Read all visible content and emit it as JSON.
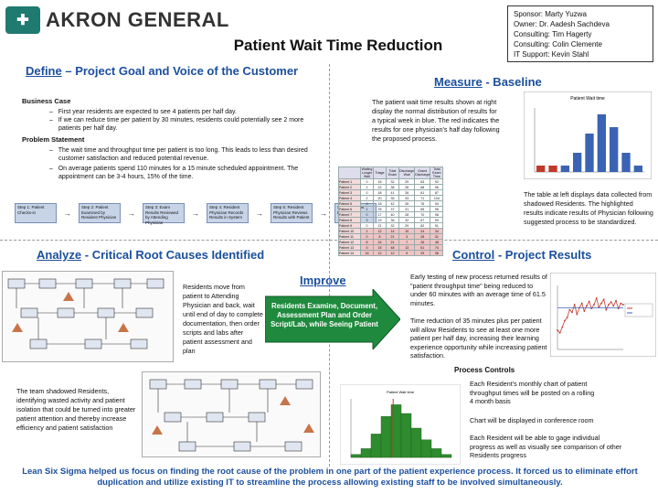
{
  "header": {
    "logo_text": "AKRON GENERAL",
    "title": "Patient Wait Time Reduction"
  },
  "team": [
    "Sponsor:  Marty Yuzwa",
    "Owner:  Dr. Aadesh Sachdeva",
    "Consulting:  Tim Hagerty",
    "Consulting:  Colin Clemente",
    "IT Support:  Kevin Stahl"
  ],
  "define": {
    "title_u": "Define",
    "title_rest": " – Project Goal and Voice of the Customer",
    "business_case_label": "Business Case",
    "business_case": [
      "First year residents are expected to see 4 patients per half day.",
      "If we can reduce time per patient by 30 minutes, residents could potentially see 2 more patients per half day."
    ],
    "problem_label": "Problem Statement",
    "problem": [
      "The wait time and throughput time per patient is too long. This leads to less than desired customer satisfaction and reduced potential revenue.",
      "On average patients spend 110 minutes for a 15 minute scheduled appointment. The appointment can be 3-4 hours, 15% of the time."
    ],
    "flow_steps": [
      "Step 1: Patient Checks-in",
      "Step 2: Patient Examined by Resident Physician",
      "Step 3: Exam Results Reviewed by Attending Physician",
      "Step 4: Resident Physician Records Results in System",
      "Step 5: Resident Physician Reviews Results with Patient",
      "Step 6: Patient Discharged"
    ]
  },
  "measure": {
    "title_u": "Measure",
    "title_rest": " - Baseline",
    "text": "The patient wait time results shown at right display the normal distribution of results for a typical week in blue. The red indicates the results for one physician's half day following the proposed process.",
    "table_note": "The table at left displays data collected from shadowed Residents. The highlighted results indicate results of Physician following suggested process to be standardized.",
    "table_headers": [
      "",
      "Waiting Longer Wait",
      "Triage",
      "Total Exam",
      "Discharge Wait",
      "Grand Discharge",
      "Total Exam Time"
    ],
    "table_rows": [
      [
        "Patient 1",
        "0",
        "16",
        "32",
        "29",
        "63",
        "92"
      ],
      [
        "Patient 2",
        "1",
        "22",
        "38",
        "28",
        "68",
        "96"
      ],
      [
        "Patient 3",
        "0",
        "18",
        "41",
        "26",
        "61",
        "87"
      ],
      [
        "Patient 4",
        "2",
        "20",
        "35",
        "33",
        "71",
        "104"
      ],
      [
        "Patient 5",
        "0",
        "18",
        "42",
        "26",
        "76",
        "94"
      ],
      [
        "Patient 6",
        "1",
        "25",
        "37",
        "31",
        "65",
        "96"
      ],
      [
        "Patient 7",
        "0",
        "17",
        "40",
        "28",
        "70",
        "98"
      ],
      [
        "Patient 8",
        "3",
        "19",
        "36",
        "32",
        "67",
        "99"
      ],
      [
        "Patient 9",
        "0",
        "21",
        "32",
        "29",
        "62",
        "91"
      ],
      [
        "Patient 10",
        "1",
        "12",
        "14",
        "10",
        "24",
        "34"
      ],
      [
        "Patient 11",
        "0",
        "8",
        "21",
        "3",
        "28",
        "31"
      ],
      [
        "Patient 12",
        "8",
        "24",
        "21",
        "7",
        "26",
        "48"
      ],
      [
        "Patient 13",
        "0",
        "15",
        "48",
        "13",
        "61",
        "74"
      ],
      [
        "Patient 14",
        "16",
        "12",
        "12",
        "9",
        "29",
        "38"
      ]
    ]
  },
  "analyze": {
    "title_u": "Analyze",
    "title_rest": " - Critical Root Causes Identified",
    "text1": "Residents move from patient to Attending Physician and back, wait until end of day to complete documentation, then order scripts and labs after patient assessment and plan",
    "text2": "The team shadowed Residents, identifying wasted activity and patient isolation that could be turned into greater patient attention and thereby increase efficiency and patient satisfaction"
  },
  "improve": {
    "label": "Improve",
    "arrow_text": "Residents Examine, Document, Assessment Plan and Order Script/Lab, while Seeing Patient"
  },
  "control": {
    "title_u": "Control",
    "title_rest": " - Project Results",
    "text1": "Early testing of new process returned results of \"patient throughput time\" being reduced to under 60 minutes with an average time of 61.5 minutes.",
    "text2": "Time reduction of 35 minutes plus per patient will allow Residents to see at least one more patient per half day, increasing their learning experience opportunity while increasing patient satisfaction.",
    "process_controls_label": "Process Controls",
    "controls": [
      "Each Resident's monthly  chart of patient throughput times will be posted on a rolling 4 month basis",
      "Chart will be displayed in conference room",
      "Each Resident will be able to gage individual progress as well as visually see comparison of other Residents progress"
    ]
  },
  "footer": {
    "banner": "Lean Six Sigma helped us focus on finding the root cause of the problem in one part of the patient experience process.  It forced us to eliminate effort duplication and utilize existing IT to streamline the process allowing existing staff to be involved simultaneously."
  },
  "chart_data": [
    {
      "type": "bar",
      "title": "Patient Wait time",
      "categories": [
        "1",
        "2",
        "3",
        "4",
        "5",
        "6",
        "7",
        "8",
        "9"
      ],
      "series": [
        {
          "values": [
            0,
            0,
            1,
            3,
            6,
            9,
            7,
            3,
            1
          ]
        },
        {
          "values": [
            1,
            1,
            0,
            0,
            0,
            0,
            0,
            0,
            0
          ]
        }
      ],
      "colors": [
        "#3b63b4",
        "#c0392b"
      ]
    },
    {
      "type": "line",
      "series": [
        {
          "values": [
            30,
            26,
            35,
            45,
            50,
            62,
            58,
            70,
            55,
            65,
            72,
            60,
            68,
            75,
            64,
            70,
            80,
            66,
            72,
            78,
            62,
            70,
            74,
            68,
            76,
            64,
            72,
            70
          ]
        },
        {
          "values": [
            65,
            65,
            65,
            65,
            65,
            65,
            65,
            65,
            65,
            65,
            65,
            65,
            65,
            65,
            65,
            65,
            65,
            65,
            65,
            65,
            65,
            65,
            65,
            65,
            65,
            65,
            65,
            65
          ]
        }
      ],
      "colors": [
        "#c0392b",
        "#3b63b4"
      ]
    },
    {
      "type": "bar",
      "title": "Patient Wait time",
      "categories": [
        "1",
        "2",
        "3",
        "4",
        "5",
        "6",
        "7",
        "8",
        "9",
        "10"
      ],
      "series": [
        {
          "values": [
            1,
            3,
            8,
            14,
            18,
            15,
            10,
            6,
            3,
            1
          ]
        }
      ],
      "colors": [
        "#2e8b2e"
      ]
    }
  ]
}
